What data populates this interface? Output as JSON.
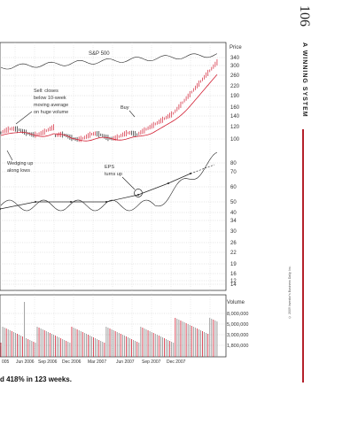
{
  "page": {
    "number": "106",
    "running_head": "A WINNING SYSTEM",
    "caption": "d 418% in 123 weeks.",
    "copyright": "© 2009 Investor's Business Daily, Inc."
  },
  "chart_data": {
    "type": "line",
    "title": "",
    "index_label": "S&P 500",
    "price_axis_label": "Price",
    "price_ticks": [
      "340",
      "300",
      "260",
      "220",
      "190",
      "160",
      "140",
      "120",
      "100",
      "80",
      "70",
      "60",
      "50",
      "40",
      "34",
      "30",
      "26",
      "22",
      "19",
      "16",
      "14",
      "12"
    ],
    "volume_axis_label": "Volume",
    "volume_ticks": [
      "8,000,000",
      "5,000,000",
      "3,000,000",
      "1,800,000"
    ],
    "x_tick_labels": [
      "005",
      "Jun 2006",
      "Sep 2006",
      "Dec 2006",
      "Mar 2007",
      "Jun 2007",
      "Sep 2007",
      "Dec 2007"
    ],
    "annotations": [
      {
        "text": [
          "Sell: closes",
          "below 10-week",
          "moving average",
          "on huge volume"
        ]
      },
      {
        "text": [
          "Buy"
        ]
      },
      {
        "text": [
          "Wedging up",
          "along lows"
        ]
      },
      {
        "text": [
          "EPS",
          "turns up"
        ]
      }
    ],
    "grid": true,
    "colors": {
      "price_bars": "#222222",
      "up_bars": "#d21f33",
      "moving_average": "#d21f33",
      "volume_bars": "#888888",
      "accent": "#b4202a"
    }
  }
}
